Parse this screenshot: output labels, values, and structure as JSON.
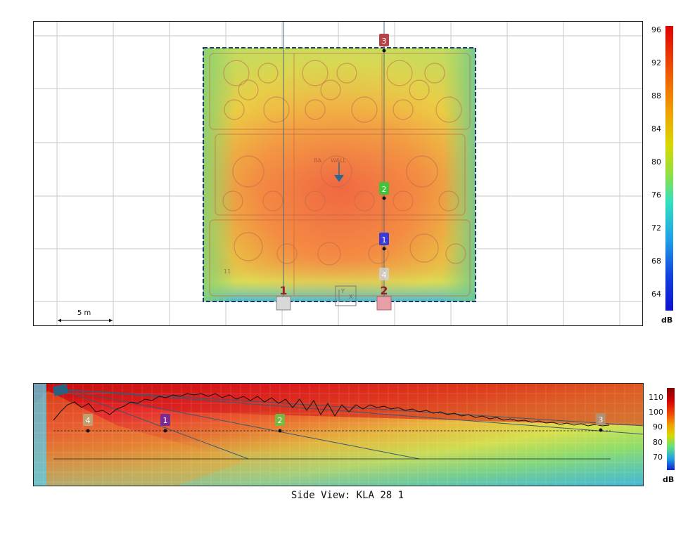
{
  "top_view": {
    "scale_label": "5 m",
    "source_labels": [
      "1",
      "2"
    ],
    "overlay_text": [
      "BA",
      "WALL",
      "11"
    ],
    "origin_axes": {
      "x_label": "X",
      "y_label": "Y"
    },
    "markers": [
      {
        "label": "3",
        "color": "#b8424a"
      },
      {
        "label": "2",
        "color": "#42c23a"
      },
      {
        "label": "1",
        "color": "#3a3ad8"
      },
      {
        "label": "4",
        "color": "#d0d0d0"
      }
    ],
    "colorbar": {
      "unit": "dB",
      "ticks": [
        "96",
        "92",
        "88",
        "84",
        "80",
        "76",
        "72",
        "68",
        "64"
      ]
    }
  },
  "side_view": {
    "caption": "Side View: KLA 28 1",
    "markers": [
      {
        "label": "4",
        "color": "#c0a070"
      },
      {
        "label": "1",
        "color": "#7a2a90"
      },
      {
        "label": "2",
        "color": "#78b840"
      },
      {
        "label": "3",
        "color": "#b09070"
      }
    ],
    "colorbar": {
      "unit": "dB",
      "ticks": [
        "110",
        "100",
        "90",
        "80",
        "70"
      ]
    }
  },
  "colors": {
    "grid": "#c8c8c8",
    "axis_line": "#4a6a80",
    "room_border": "#1a3a70"
  }
}
